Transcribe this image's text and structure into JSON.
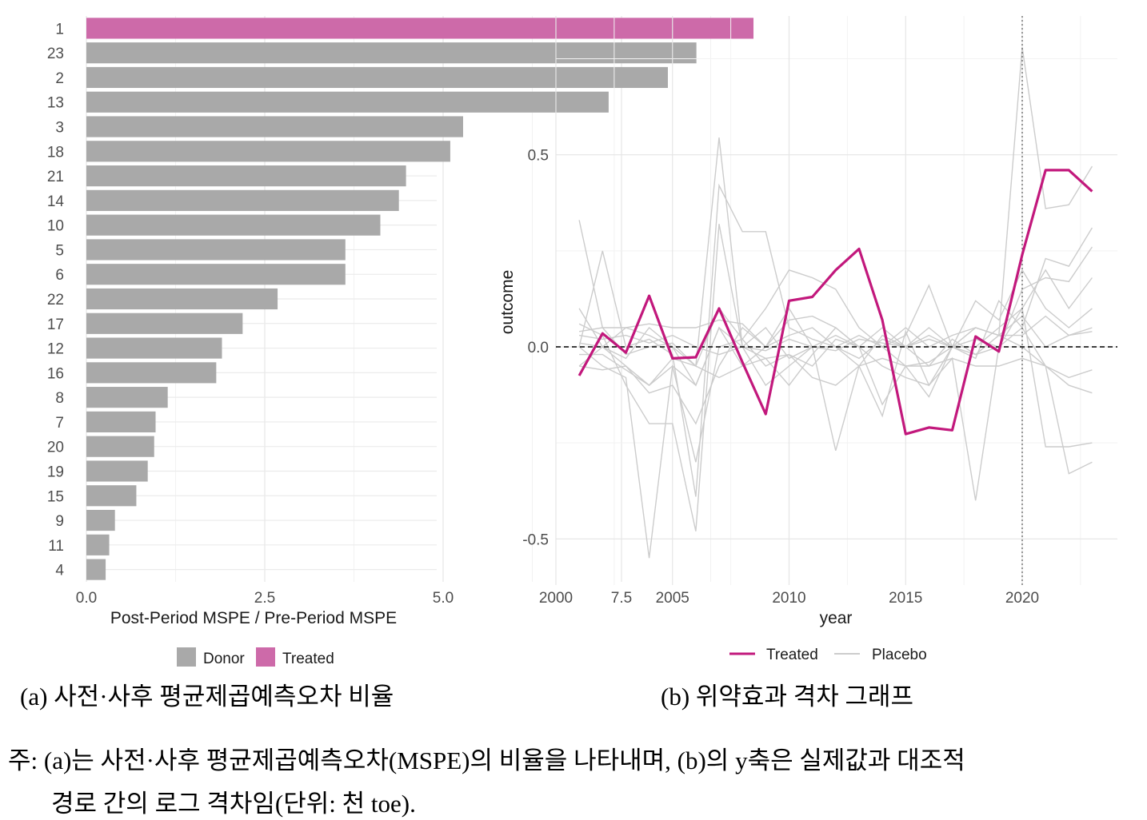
{
  "chart_data": [
    {
      "type": "bar",
      "orientation": "horizontal",
      "categories": [
        "1",
        "23",
        "2",
        "13",
        "3",
        "18",
        "21",
        "14",
        "10",
        "5",
        "6",
        "22",
        "17",
        "12",
        "16",
        "8",
        "7",
        "20",
        "19",
        "15",
        "9",
        "11",
        "4"
      ],
      "values": [
        9.35,
        8.55,
        8.15,
        7.32,
        5.28,
        5.1,
        4.48,
        4.38,
        4.12,
        3.63,
        3.63,
        2.68,
        2.19,
        1.9,
        1.82,
        1.14,
        0.97,
        0.95,
        0.86,
        0.7,
        0.4,
        0.32,
        0.27
      ],
      "groups": [
        "Treated",
        "Donor",
        "Donor",
        "Donor",
        "Donor",
        "Donor",
        "Donor",
        "Donor",
        "Donor",
        "Donor",
        "Donor",
        "Donor",
        "Donor",
        "Donor",
        "Donor",
        "Donor",
        "Donor",
        "Donor",
        "Donor",
        "Donor",
        "Donor",
        "Donor",
        "Donor"
      ],
      "xlabel": "Post-Period MSPE / Pre-Period MSPE",
      "ylabel": "",
      "xlim": [
        0,
        9.35
      ],
      "xticks": [
        "0.0",
        "2.5",
        "5.0",
        "7.5"
      ],
      "xtick_values": [
        0,
        2.5,
        5.0,
        7.5
      ],
      "legend": {
        "position": "bottom",
        "items": [
          {
            "label": "Donor",
            "color": "#a9a9a9"
          },
          {
            "label": "Treated",
            "color": "#cd6aa9"
          }
        ]
      },
      "grid": true
    },
    {
      "type": "line",
      "xlabel": "year",
      "ylabel": "outcome",
      "xlim": [
        2000,
        2023
      ],
      "ylim": [
        -0.6,
        0.8
      ],
      "xticks": [
        "2000",
        "2005",
        "2010",
        "2015",
        "2020"
      ],
      "xtick_values": [
        2000,
        2005,
        2010,
        2015,
        2020
      ],
      "yticks": [
        "-0.5",
        "0.0",
        "0.5"
      ],
      "ytick_values": [
        -0.5,
        0.0,
        0.5
      ],
      "reference_lines": [
        {
          "axis": "y",
          "value": 0,
          "style": "dashed"
        },
        {
          "axis": "x",
          "value": 2020,
          "style": "dotted"
        }
      ],
      "legend": {
        "position": "bottom",
        "items": [
          {
            "label": "Treated",
            "color": "#c2187c"
          },
          {
            "label": "Placebo",
            "color": "#cccccc"
          }
        ]
      },
      "grid": true,
      "x": [
        2001,
        2002,
        2003,
        2004,
        2005,
        2006,
        2007,
        2008,
        2009,
        2010,
        2011,
        2012,
        2013,
        2014,
        2015,
        2016,
        2017,
        2018,
        2019,
        2020,
        2021,
        2022,
        2023
      ],
      "series": [
        {
          "name": "Treated",
          "color": "#c2187c",
          "values": [
            -0.075,
            0.035,
            -0.015,
            0.133,
            -0.03,
            -0.027,
            0.1,
            -0.04,
            -0.175,
            0.12,
            0.13,
            0.2,
            0.255,
            0.07,
            -0.227,
            -0.21,
            -0.217,
            0.027,
            -0.012,
            0.24,
            0.46,
            0.46,
            0.405
          ]
        },
        {
          "name": "",
          "values": [
            0.33,
            0.05,
            -0.02,
            0.0,
            0.01,
            -0.05,
            0.545,
            0.0,
            -0.01,
            0.02,
            0.0,
            -0.01,
            0.02,
            0.01,
            0.0,
            0.03,
            0.0,
            -0.02,
            0.03,
            0.78,
            0.36,
            0.37,
            0.47
          ]
        },
        {
          "name": "",
          "values": [
            0.0,
            0.25,
            0.0,
            0.02,
            -0.02,
            -0.39,
            0.42,
            0.3,
            0.3,
            0.05,
            0.02,
            0.0,
            -0.03,
            0.02,
            0.0,
            0.02,
            0.0,
            0.02,
            0.0,
            0.05,
            0.23,
            0.21,
            0.31
          ]
        },
        {
          "name": "",
          "values": [
            0.06,
            0.03,
            -0.1,
            -0.2,
            -0.2,
            -0.48,
            0.32,
            0.0,
            -0.1,
            -0.05,
            0.0,
            -0.27,
            -0.05,
            -0.18,
            0.04,
            -0.1,
            -0.03,
            -0.4,
            0.0,
            0.1,
            -0.26,
            -0.26,
            -0.25
          ]
        },
        {
          "name": "",
          "values": [
            0.1,
            0.0,
            -0.05,
            -0.12,
            -0.1,
            -0.2,
            -0.05,
            0.05,
            0.0,
            0.1,
            0.0,
            0.03,
            0.0,
            0.0,
            -0.05,
            -0.13,
            0.0,
            -0.03,
            0.12,
            0.05,
            -0.05,
            -0.33,
            -0.3
          ]
        },
        {
          "name": "",
          "values": [
            0.0,
            -0.05,
            -0.08,
            -0.55,
            -0.05,
            -0.1,
            0.05,
            0.0,
            -0.03,
            -0.1,
            -0.02,
            0.05,
            0.0,
            -0.15,
            -0.05,
            -0.04,
            0.0,
            0.0,
            0.05,
            0.1,
            0.2,
            0.1,
            0.18
          ]
        },
        {
          "name": "",
          "values": [
            0.01,
            0.0,
            -0.03,
            0.05,
            0.0,
            -0.05,
            0.1,
            0.02,
            0.1,
            0.2,
            0.18,
            0.15,
            0.05,
            0.0,
            0.03,
            0.16,
            0.0,
            0.12,
            0.07,
            0.2,
            0.1,
            0.05,
            0.1
          ]
        },
        {
          "name": "",
          "values": [
            -0.02,
            -0.02,
            -0.06,
            -0.1,
            -0.05,
            -0.3,
            0.0,
            0.02,
            -0.05,
            -0.02,
            -0.05,
            0.02,
            0.0,
            -0.05,
            -0.08,
            -0.1,
            0.0,
            0.05,
            0.03,
            0.0,
            -0.05,
            -0.08,
            -0.06
          ]
        },
        {
          "name": "",
          "values": [
            0.03,
            0.02,
            0.03,
            0.01,
            0.03,
            0.0,
            -0.02,
            0.0,
            0.05,
            -0.03,
            0.0,
            0.0,
            0.03,
            0.0,
            0.05,
            0.0,
            0.03,
            0.05,
            0.03,
            0.03,
            0.08,
            0.03,
            0.05
          ]
        },
        {
          "name": "",
          "values": [
            -0.05,
            0.0,
            0.05,
            0.03,
            0.0,
            -0.1,
            0.05,
            -0.05,
            0.0,
            0.03,
            0.05,
            0.0,
            -0.05,
            0.03,
            0.0,
            -0.05,
            0.02,
            -0.02,
            0.0,
            0.15,
            0.18,
            0.17,
            0.26
          ]
        },
        {
          "name": "",
          "values": [
            0.04,
            0.05,
            0.05,
            0.06,
            0.05,
            0.05,
            0.07,
            0.06,
            0.0,
            0.07,
            0.08,
            0.05,
            0.0,
            0.05,
            0.0,
            0.05,
            0.0,
            0.05,
            0.03,
            0.08,
            0.0,
            0.03,
            0.04
          ]
        },
        {
          "name": "",
          "values": [
            -0.05,
            -0.06,
            -0.05,
            -0.1,
            -0.03,
            -0.05,
            -0.08,
            -0.05,
            -0.03,
            -0.02,
            -0.08,
            -0.1,
            -0.05,
            -0.03,
            -0.05,
            -0.05,
            -0.03,
            -0.05,
            -0.05,
            -0.03,
            -0.05,
            -0.1,
            -0.12
          ]
        }
      ]
    }
  ],
  "captions": {
    "a": "(a) 사전·사후 평균제곱예측오차 비율",
    "b": "(b) 위약효과 격차 그래프"
  },
  "note": {
    "line1": "주: (a)는 사전·사후 평균제곱예측오차(MSPE)의 비율을 나타내며, (b)의 y축은 실제값과 대조적",
    "line2": "경로 간의 로그 격차임(단위: 천 toe)."
  }
}
